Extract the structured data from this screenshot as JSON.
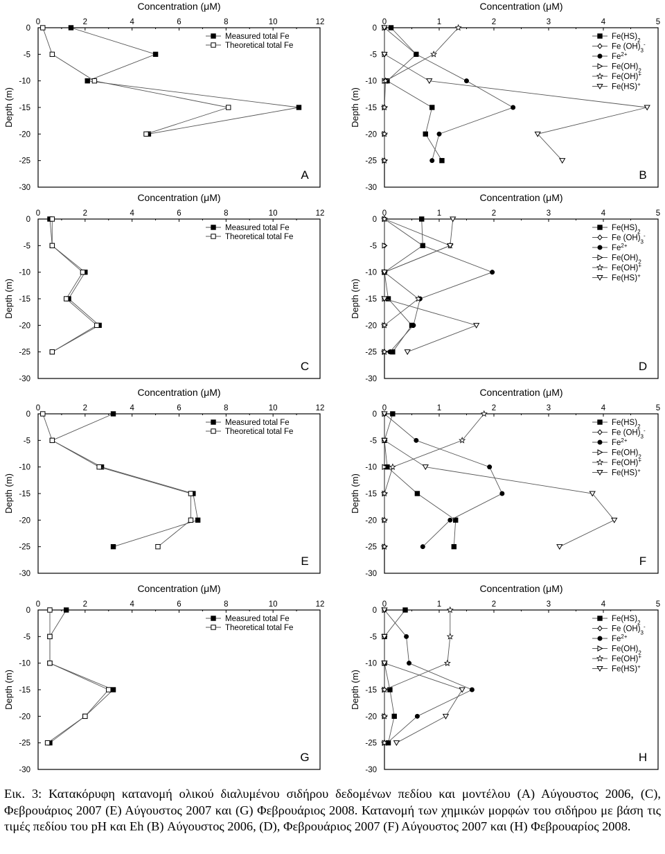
{
  "chart_data": [
    {
      "type": "line",
      "panel_label": "A",
      "xlabel": "Concentration (μM)",
      "ylabel": "Depth (m)",
      "xlim": [
        0,
        12
      ],
      "ylim": [
        -30,
        0
      ],
      "xticks": [
        "0",
        "2",
        "4",
        "6",
        "8",
        "10",
        "12"
      ],
      "yticks": [
        "0",
        "-5",
        "-10",
        "-15",
        "-20",
        "-25",
        "-30"
      ],
      "legend_position": "top-right",
      "grid": false,
      "series": [
        {
          "name": "Measured total Fe",
          "marker": "square-filled",
          "x": [
            1.4,
            5.0,
            2.1,
            11.1,
            4.7
          ],
          "y": [
            0,
            -5,
            -10,
            -15,
            -20
          ]
        },
        {
          "name": "Theoretical total Fe",
          "marker": "square-open",
          "x": [
            0.2,
            0.6,
            2.4,
            8.1,
            4.6
          ],
          "y": [
            0,
            -5,
            -10,
            -15,
            -20
          ]
        }
      ]
    },
    {
      "type": "line",
      "panel_label": "B",
      "xlabel": "Concentration (μM)",
      "ylabel": "Depth (m)",
      "xlim": [
        0,
        5
      ],
      "ylim": [
        -30,
        0
      ],
      "xticks": [
        "0",
        "1",
        "2",
        "3",
        "4",
        "5"
      ],
      "yticks": [
        "0",
        "-5",
        "-10",
        "-15",
        "-20",
        "-25",
        "-30"
      ],
      "legend_position": "top-right",
      "grid": false,
      "series": [
        {
          "name": "Fe(HS)₂",
          "marker": "square-filled",
          "x": [
            0.12,
            0.58,
            0.05,
            0.87,
            0.75,
            1.05
          ],
          "y": [
            0,
            -5,
            -10,
            -15,
            -20,
            -25
          ]
        },
        {
          "name": "Fe (OH)₃⁻",
          "marker": "diamond-open",
          "x": [
            0,
            0,
            0,
            0,
            0,
            0
          ],
          "y": [
            0,
            -5,
            -10,
            -15,
            -20,
            -25
          ]
        },
        {
          "name": "Fe²⁺",
          "marker": "circle-filled",
          "x": [
            0,
            0.58,
            1.5,
            2.35,
            1.0,
            0.87
          ],
          "y": [
            0,
            -5,
            -10,
            -15,
            -20,
            -25
          ]
        },
        {
          "name": "Fe(OH)₂",
          "marker": "triangle-right-open",
          "x": [
            0,
            0,
            0,
            0,
            0,
            0
          ],
          "y": [
            0,
            -5,
            -10,
            -15,
            -20,
            -25
          ]
        },
        {
          "name": "Fe(OH)⁺",
          "marker": "star-open",
          "x": [
            1.35,
            0.9,
            0.02,
            0,
            0,
            0
          ],
          "y": [
            0,
            -5,
            -10,
            -15,
            -20,
            -25
          ]
        },
        {
          "name": "Fe(HS)⁺",
          "marker": "triangle-down-open",
          "x": [
            0,
            0,
            0.82,
            4.8,
            2.8,
            3.25
          ],
          "y": [
            0,
            -5,
            -10,
            -15,
            -20,
            -25
          ]
        }
      ]
    },
    {
      "type": "line",
      "panel_label": "C",
      "xlabel": "Concentration (μM)",
      "ylabel": "Depth (m)",
      "xlim": [
        0,
        12
      ],
      "ylim": [
        -30,
        0
      ],
      "xticks": [
        "0",
        "2",
        "4",
        "6",
        "8",
        "10",
        "12"
      ],
      "yticks": [
        "0",
        "-5",
        "-10",
        "-15",
        "-20",
        "-25",
        "-30"
      ],
      "legend_position": "top-right",
      "grid": false,
      "series": [
        {
          "name": "Measured total Fe",
          "marker": "square-filled",
          "x": [
            0.5,
            0.6,
            2.0,
            1.3,
            2.6,
            0.6
          ],
          "y": [
            0,
            -5,
            -10,
            -15,
            -20,
            -25
          ]
        },
        {
          "name": "Theoretical total Fe",
          "marker": "square-open",
          "x": [
            0.6,
            0.6,
            1.9,
            1.2,
            2.5,
            0.6
          ],
          "y": [
            0,
            -5,
            -10,
            -15,
            -20,
            -25
          ]
        }
      ]
    },
    {
      "type": "line",
      "panel_label": "D",
      "xlabel": "Concentration (μM)",
      "ylabel": "Depth (m)",
      "xlim": [
        0,
        5
      ],
      "ylim": [
        -30,
        0
      ],
      "xticks": [
        "0",
        "1",
        "2",
        "3",
        "4",
        "5"
      ],
      "yticks": [
        "0",
        "-5",
        "-10",
        "-15",
        "-20",
        "-25",
        "-30"
      ],
      "legend_position": "top-right",
      "grid": false,
      "series": [
        {
          "name": "Fe(HS)₂",
          "marker": "square-filled",
          "x": [
            0.68,
            0.7,
            0,
            0.07,
            0.5,
            0.15
          ],
          "y": [
            0,
            -5,
            -10,
            -15,
            -20,
            -25
          ]
        },
        {
          "name": "Fe (OH)₃⁻",
          "marker": "diamond-open",
          "x": [
            0,
            0,
            0,
            0,
            0,
            0
          ],
          "y": [
            0,
            -5,
            -10,
            -15,
            -20,
            -25
          ]
        },
        {
          "name": "Fe²⁺",
          "marker": "circle-filled",
          "x": [
            0,
            0.7,
            1.97,
            0.65,
            0.53,
            0.1
          ],
          "y": [
            0,
            -5,
            -10,
            -15,
            -20,
            -25
          ]
        },
        {
          "name": "Fe(OH)₂",
          "marker": "triangle-right-open",
          "x": [
            0,
            0,
            0,
            0,
            0,
            0
          ],
          "y": [
            0,
            -5,
            -10,
            -15,
            -20,
            -25
          ]
        },
        {
          "name": "Fe(OH)⁺",
          "marker": "star-open",
          "x": [
            0,
            1.2,
            0,
            0.62,
            0,
            0
          ],
          "y": [
            0,
            -5,
            -10,
            -15,
            -20,
            -25
          ]
        },
        {
          "name": "Fe(HS)⁺",
          "marker": "triangle-down-open",
          "x": [
            1.25,
            1.2,
            0,
            0,
            1.68,
            0.42
          ],
          "y": [
            0,
            -5,
            -10,
            -15,
            -20,
            -25
          ]
        }
      ]
    },
    {
      "type": "line",
      "panel_label": "E",
      "xlabel": "Concentration (μM)",
      "ylabel": "Depth (m)",
      "xlim": [
        0,
        12
      ],
      "ylim": [
        -30,
        0
      ],
      "xticks": [
        "0",
        "2",
        "4",
        "6",
        "8",
        "10",
        "12"
      ],
      "yticks": [
        "0",
        "-5",
        "-10",
        "-15",
        "-20",
        "-25",
        "-30"
      ],
      "legend_position": "top-right",
      "grid": false,
      "series": [
        {
          "name": "Measured total Fe",
          "marker": "square-filled",
          "x": [
            3.2,
            0.6,
            2.7,
            6.6,
            6.8,
            3.2
          ],
          "y": [
            0,
            -5,
            -10,
            -15,
            -20,
            -25
          ]
        },
        {
          "name": "Theoretical total Fe",
          "marker": "square-open",
          "x": [
            0.2,
            0.6,
            2.6,
            6.5,
            6.5,
            5.1
          ],
          "y": [
            0,
            -5,
            -10,
            -15,
            -20,
            -25
          ]
        }
      ]
    },
    {
      "type": "line",
      "panel_label": "F",
      "xlabel": "Concentration (μM)",
      "ylabel": "Depth (m)",
      "xlim": [
        0,
        5
      ],
      "ylim": [
        -30,
        0
      ],
      "xticks": [
        "0",
        "1",
        "2",
        "3",
        "4",
        "5"
      ],
      "yticks": [
        "0",
        "-5",
        "-10",
        "-15",
        "-20",
        "-25",
        "-30"
      ],
      "legend_position": "top-right",
      "grid": false,
      "series": [
        {
          "name": "Fe(HS)₂",
          "marker": "square-filled",
          "x": [
            0.15,
            0,
            0.05,
            0.6,
            1.3,
            1.27
          ],
          "y": [
            0,
            -5,
            -10,
            -15,
            -20,
            -25
          ]
        },
        {
          "name": "Fe (OH)₃⁻",
          "marker": "diamond-open",
          "x": [
            0,
            0,
            0,
            0,
            0,
            0
          ],
          "y": [
            0,
            -5,
            -10,
            -15,
            -20,
            -25
          ]
        },
        {
          "name": "Fe²⁺",
          "marker": "circle-filled",
          "x": [
            0,
            0.58,
            1.92,
            2.15,
            1.2,
            0.7
          ],
          "y": [
            0,
            -5,
            -10,
            -15,
            -20,
            -25
          ]
        },
        {
          "name": "Fe(OH)₂",
          "marker": "triangle-right-open",
          "x": [
            0,
            0,
            0,
            0,
            0,
            0
          ],
          "y": [
            0,
            -5,
            -10,
            -15,
            -20,
            -25
          ]
        },
        {
          "name": "Fe(OH)⁺",
          "marker": "star-open",
          "x": [
            1.82,
            1.42,
            0.15,
            0,
            0,
            0
          ],
          "y": [
            0,
            -5,
            -10,
            -15,
            -20,
            -25
          ]
        },
        {
          "name": "Fe(HS)⁺",
          "marker": "triangle-down-open",
          "x": [
            0,
            0,
            0.75,
            3.8,
            4.2,
            3.2
          ],
          "y": [
            0,
            -5,
            -10,
            -15,
            -20,
            -25
          ]
        }
      ]
    },
    {
      "type": "line",
      "panel_label": "G",
      "xlabel": "Concentration (μM)",
      "ylabel": "Depth (m)",
      "xlim": [
        0,
        12
      ],
      "ylim": [
        -30,
        0
      ],
      "xticks": [
        "0",
        "2",
        "4",
        "6",
        "8",
        "10",
        "12"
      ],
      "yticks": [
        "0",
        "-5",
        "-10",
        "-15",
        "-20",
        "-25",
        "-30"
      ],
      "legend_position": "top-right",
      "grid": false,
      "series": [
        {
          "name": "Measured total Fe",
          "marker": "square-filled",
          "x": [
            1.2,
            0.5,
            0.5,
            3.2,
            2.0,
            0.5
          ],
          "y": [
            0,
            -5,
            -10,
            -15,
            -20,
            -25
          ]
        },
        {
          "name": "Theoretical total Fe",
          "marker": "square-open",
          "x": [
            0.5,
            0.5,
            0.5,
            3.0,
            2.0,
            0.4
          ],
          "y": [
            0,
            -5,
            -10,
            -15,
            -20,
            -25
          ]
        }
      ]
    },
    {
      "type": "line",
      "panel_label": "H",
      "xlabel": "Concentration (μM)",
      "ylabel": "Depth (m)",
      "xlim": [
        0,
        5
      ],
      "ylim": [
        -30,
        0
      ],
      "xticks": [
        "0",
        "1",
        "2",
        "3",
        "4",
        "5"
      ],
      "yticks": [
        "0",
        "-5",
        "-10",
        "-15",
        "-20",
        "-25",
        "-30"
      ],
      "legend_position": "top-right",
      "grid": false,
      "series": [
        {
          "name": "Fe(HS)₂",
          "marker": "square-filled",
          "x": [
            0.38,
            0,
            0,
            0.1,
            0.18,
            0.07
          ],
          "y": [
            0,
            -5,
            -10,
            -15,
            -20,
            -25
          ]
        },
        {
          "name": "Fe (OH)₃⁻",
          "marker": "diamond-open",
          "x": [
            0,
            0,
            0,
            0,
            0,
            0
          ],
          "y": [
            0,
            -5,
            -10,
            -15,
            -20,
            -25
          ]
        },
        {
          "name": "Fe²⁺",
          "marker": "circle-filled",
          "x": [
            0,
            0.4,
            0.45,
            1.6,
            0.6,
            0.05
          ],
          "y": [
            0,
            -5,
            -10,
            -15,
            -20,
            -25
          ]
        },
        {
          "name": "Fe(OH)₂",
          "marker": "triangle-right-open",
          "x": [
            0,
            0,
            0,
            0,
            0,
            0
          ],
          "y": [
            0,
            -5,
            -10,
            -15,
            -20,
            -25
          ]
        },
        {
          "name": "Fe(OH)⁺",
          "marker": "star-open",
          "x": [
            1.2,
            1.2,
            1.15,
            0,
            0,
            0
          ],
          "y": [
            0,
            -5,
            -10,
            -15,
            -20,
            -25
          ]
        },
        {
          "name": "Fe(HS)⁺",
          "marker": "triangle-down-open",
          "x": [
            0,
            0,
            0,
            1.42,
            1.12,
            0.22
          ],
          "y": [
            0,
            -5,
            -10,
            -15,
            -20,
            -25
          ]
        }
      ]
    }
  ],
  "caption": "Εικ. 3: Κατακόρυφη κατανομή ολικού διαλυμένου σιδήρου δεδομένων πεδίου και μοντέλου (A) Αύγουστος 2006, (C), Φεβρουάριος 2007 (E) Αύγουστος 2007 και (G) Φεβρουάριος 2008. Κατανομή των χημικών μορφών του σιδήρου με βάση τις τιμές πεδίου του pH και Eh (B) Αύγουστος 2006, (D), Φεβρουάριος 2007 (F) Αύγουστος 2007 και (H) Φεβρουαρίος 2008."
}
